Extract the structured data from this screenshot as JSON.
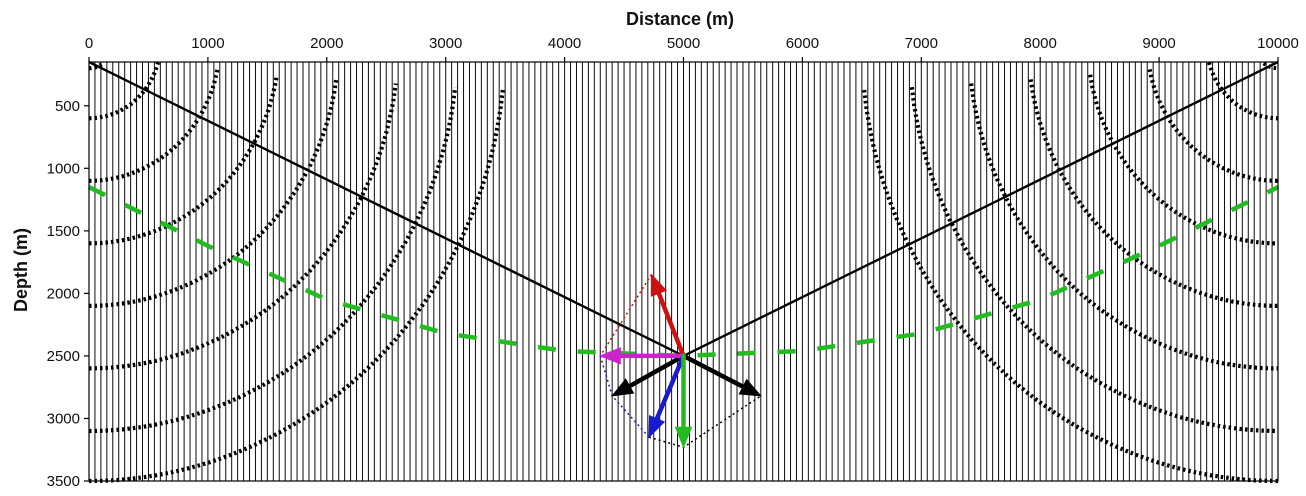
{
  "chart_data": {
    "type": "scatter",
    "title": "",
    "xlabel": "Distance (m)",
    "ylabel": "Depth (m)",
    "x_axis_position": "top",
    "y_axis_inverted": true,
    "xlim": [
      0,
      10000
    ],
    "ylim": [
      150,
      3500
    ],
    "x_ticks": [
      0,
      1000,
      2000,
      3000,
      4000,
      5000,
      6000,
      7000,
      8000,
      9000,
      10000
    ],
    "x_tick_labels": [
      "0",
      "1000",
      "2000",
      "3000",
      "4000",
      "5000",
      "6000",
      "7000",
      "8000",
      "9000",
      "10000"
    ],
    "y_ticks": [
      500,
      1000,
      1500,
      2000,
      2500,
      3000,
      3500
    ],
    "y_tick_labels": [
      "500",
      "1000",
      "1500",
      "2000",
      "2500",
      "3000",
      "3500"
    ],
    "grid": false,
    "legend": "none",
    "receiver_traces": {
      "spacing_m": 50,
      "from_m": 0,
      "to_m": 10000,
      "color": "#000000"
    },
    "hyperbola_families": [
      {
        "apex_x": 0,
        "color": "#000000",
        "velocity_m_s": 2000,
        "times_s": [
          0.2,
          0.6,
          1.1,
          1.6,
          2.1,
          2.6,
          3.1,
          3.5
        ]
      },
      {
        "apex_x": 10000,
        "color": "#000000",
        "velocity_m_s": 2000,
        "times_s": [
          0.2,
          0.6,
          1.1,
          1.6,
          2.1,
          2.6,
          3.1,
          3.5
        ]
      }
    ],
    "series": [
      {
        "style": "solid",
        "color": "#000000",
        "x": [
          0,
          5000,
          10000
        ],
        "y": [
          150,
          2500,
          150
        ]
      },
      {
        "style": "dashed",
        "color": "#22bb22",
        "x": [
          0,
          1000,
          2000,
          3000,
          4000,
          5000,
          6000,
          7000,
          8000,
          9000,
          10000
        ],
        "y": [
          1150,
          1620,
          2050,
          2320,
          2460,
          2500,
          2460,
          2320,
          2050,
          1620,
          1150
        ]
      }
    ],
    "arrows": [
      {
        "color": "#000000",
        "from": [
          5000,
          2500
        ],
        "to": [
          4400,
          2820
        ]
      },
      {
        "color": "#000000",
        "from": [
          5000,
          2500
        ],
        "to": [
          5650,
          2820
        ]
      },
      {
        "color": "#cc1111",
        "from": [
          5000,
          2500
        ],
        "to": [
          4730,
          1850
        ]
      },
      {
        "color": "#cc22cc",
        "from": [
          5000,
          2500
        ],
        "to": [
          4300,
          2500
        ]
      },
      {
        "color": "#1a1acc",
        "from": [
          5000,
          2500
        ],
        "to": [
          4710,
          3150
        ]
      },
      {
        "color": "#22bb22",
        "from": [
          5000,
          2500
        ],
        "to": [
          5000,
          3230
        ]
      }
    ],
    "dotted_guides": [
      {
        "color": "#cc1111",
        "x": [
          4730,
          4300
        ],
        "y": [
          1850,
          2500
        ]
      },
      {
        "color": "#1a1acc",
        "x": [
          4300,
          4400,
          4710
        ],
        "y": [
          2500,
          2820,
          3150
        ]
      },
      {
        "color": "#000000",
        "x": [
          4710,
          5000,
          5650
        ],
        "y": [
          3150,
          3230,
          2820
        ]
      }
    ]
  }
}
